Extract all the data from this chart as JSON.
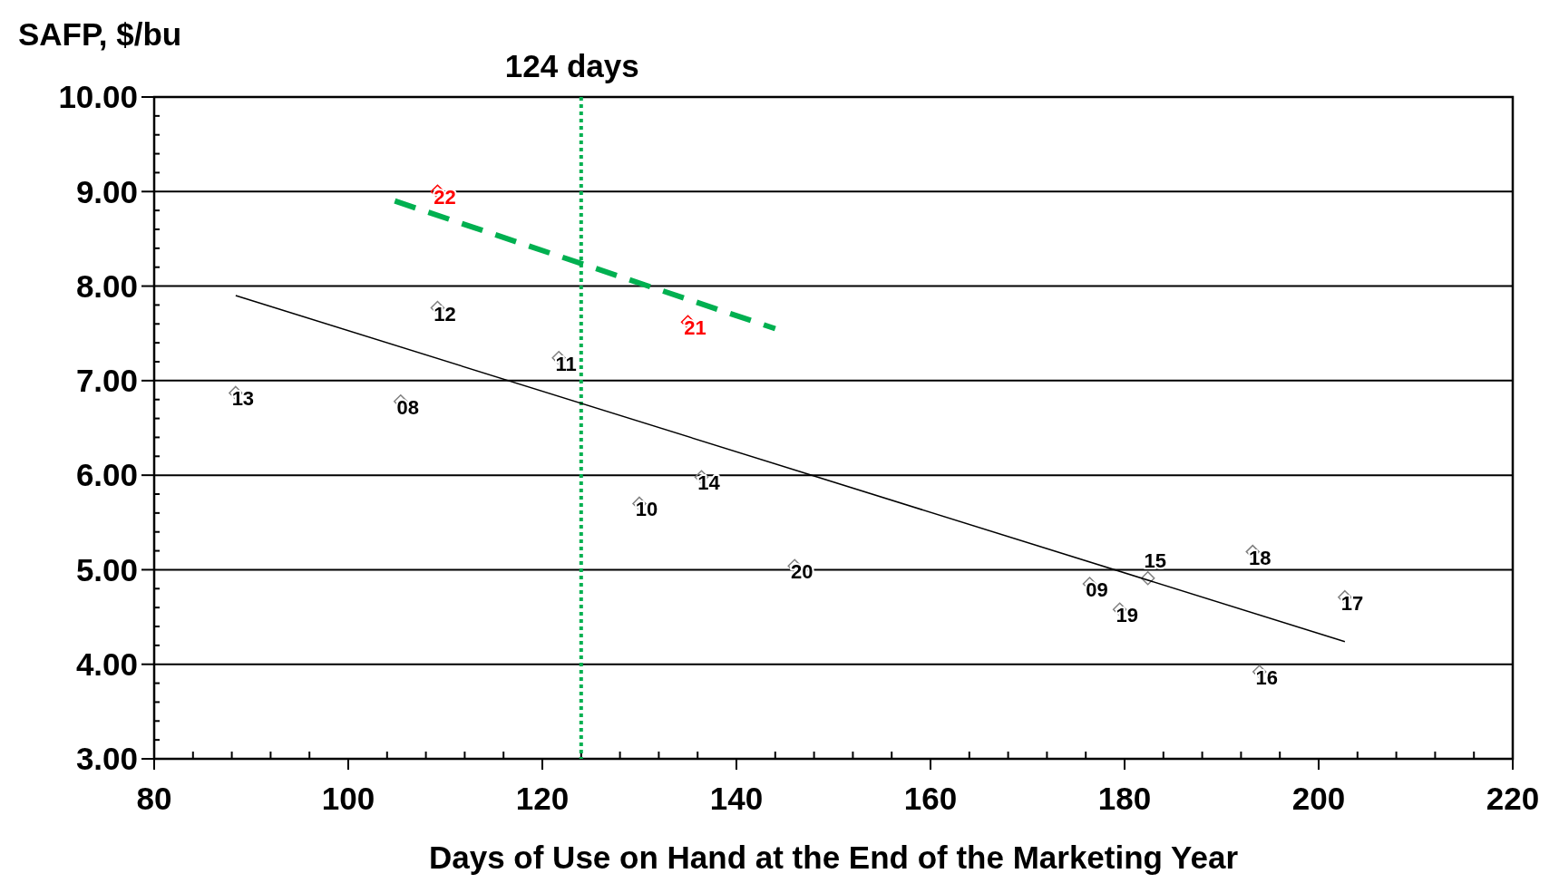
{
  "chart_data": {
    "type": "scatter",
    "ylabel": "SAFP, $/bu",
    "xlabel": "Days of Use on Hand at the End of the Marketing Year",
    "xlim": [
      80,
      220
    ],
    "ylim": [
      3,
      10
    ],
    "xticks": [
      80,
      {
        "value": 84,
        "label": null
      },
      {
        "value": 88,
        "label": null
      },
      {
        "value": 92,
        "label": null
      },
      {
        "value": 96,
        "label": null
      },
      100,
      {
        "value": 104,
        "label": null
      },
      {
        "value": 108,
        "label": null
      },
      {
        "value": 112,
        "label": null
      },
      {
        "value": 116,
        "label": null
      },
      120,
      {
        "value": 124,
        "label": null
      },
      {
        "value": 128,
        "label": null
      },
      {
        "value": 132,
        "label": null
      },
      {
        "value": 136,
        "label": null
      },
      140,
      {
        "value": 144,
        "label": null
      },
      {
        "value": 148,
        "label": null
      },
      {
        "value": 152,
        "label": null
      },
      {
        "value": 156,
        "label": null
      },
      160,
      {
        "value": 164,
        "label": null
      },
      {
        "value": 168,
        "label": null
      },
      {
        "value": 172,
        "label": null
      },
      {
        "value": 176,
        "label": null
      },
      180,
      {
        "value": 184,
        "label": null
      },
      {
        "value": 188,
        "label": null
      },
      {
        "value": 192,
        "label": null
      },
      {
        "value": 196,
        "label": null
      },
      200,
      {
        "value": 204,
        "label": null
      },
      {
        "value": 208,
        "label": null
      },
      {
        "value": 212,
        "label": null
      },
      {
        "value": 216,
        "label": null
      },
      220
    ],
    "yticks": [
      {
        "value": 3,
        "label": "3.00"
      },
      {
        "value": 3.2,
        "label": null
      },
      {
        "value": 3.4,
        "label": null
      },
      {
        "value": 3.6,
        "label": null
      },
      {
        "value": 3.8,
        "label": null
      },
      {
        "value": 4,
        "label": "4.00"
      },
      {
        "value": 4.2,
        "label": null
      },
      {
        "value": 4.4,
        "label": null
      },
      {
        "value": 4.6,
        "label": null
      },
      {
        "value": 4.8,
        "label": null
      },
      {
        "value": 5,
        "label": "5.00"
      },
      {
        "value": 5.2,
        "label": null
      },
      {
        "value": 5.4,
        "label": null
      },
      {
        "value": 5.6,
        "label": null
      },
      {
        "value": 5.8,
        "label": null
      },
      {
        "value": 6,
        "label": "6.00"
      },
      {
        "value": 6.2,
        "label": null
      },
      {
        "value": 6.4,
        "label": null
      },
      {
        "value": 6.6,
        "label": null
      },
      {
        "value": 6.8,
        "label": null
      },
      {
        "value": 7,
        "label": "7.00"
      },
      {
        "value": 7.2,
        "label": null
      },
      {
        "value": 7.4,
        "label": null
      },
      {
        "value": 7.6,
        "label": null
      },
      {
        "value": 7.8,
        "label": null
      },
      {
        "value": 8,
        "label": "8.00"
      },
      {
        "value": 8.2,
        "label": null
      },
      {
        "value": 8.4,
        "label": null
      },
      {
        "value": 8.6,
        "label": null
      },
      {
        "value": 8.8,
        "label": null
      },
      {
        "value": 9,
        "label": "9.00"
      },
      {
        "value": 9.2,
        "label": null
      },
      {
        "value": 9.4,
        "label": null
      },
      {
        "value": 9.6,
        "label": null
      },
      {
        "value": 9.8,
        "label": null
      },
      {
        "value": 10,
        "label": "10.00"
      }
    ],
    "grid": "y",
    "series": [
      {
        "color": "#808080",
        "marker": "diamond",
        "x": [
          88.4,
          105.4,
          109.2,
          121.7,
          130.0,
          136.4,
          146.0,
          176.4,
          179.5,
          182.4,
          193.2,
          202.7,
          193.9
        ],
        "values": [
          6.87,
          6.78,
          7.77,
          7.24,
          5.7,
          5.98,
          5.04,
          4.85,
          4.58,
          4.91,
          5.19,
          4.71,
          3.92
        ]
      },
      {
        "color": "#ff0000",
        "marker": "diamond",
        "x": [
          109.2,
          135.0
        ],
        "values": [
          9.0,
          7.62
        ]
      },
      {
        "type": "line",
        "color": "#000000",
        "x": [
          88.4,
          202.7
        ],
        "values": [
          7.9,
          4.24
        ],
        "line_style": "solid"
      },
      {
        "type": "line",
        "color": "#00b050",
        "x": [
          104.8,
          144.0
        ],
        "values": [
          8.9,
          7.55
        ],
        "line_style": "dashed"
      }
    ],
    "annotations": [
      {
        "text": "13",
        "x": 88.4,
        "y": 6.87
      },
      {
        "text": "08",
        "x": 105.4,
        "y": 6.78
      },
      {
        "text": "12",
        "x": 109.2,
        "y": 7.77
      },
      {
        "text": "11",
        "x": 121.7,
        "y": 7.24
      },
      {
        "text": "10",
        "x": 130.0,
        "y": 5.7
      },
      {
        "text": "14",
        "x": 136.4,
        "y": 5.98
      },
      {
        "text": "20",
        "x": 146.0,
        "y": 5.04
      },
      {
        "text": "09",
        "x": 176.4,
        "y": 4.85
      },
      {
        "text": "19",
        "x": 179.5,
        "y": 4.58
      },
      {
        "text": "15",
        "x": 182.4,
        "y": 4.91
      },
      {
        "text": "18",
        "x": 193.2,
        "y": 5.19
      },
      {
        "text": "17",
        "x": 202.7,
        "y": 4.71
      },
      {
        "text": "16",
        "x": 193.9,
        "y": 3.92
      },
      {
        "text": "22",
        "x": 109.2,
        "y": 9.0
      },
      {
        "text": "21",
        "x": 135.0,
        "y": 7.62
      }
    ],
    "ref_lines": [
      {
        "axis": "x",
        "value": 124,
        "label": "124 days",
        "color": "#00b050",
        "line_style": "dotted"
      }
    ]
  }
}
